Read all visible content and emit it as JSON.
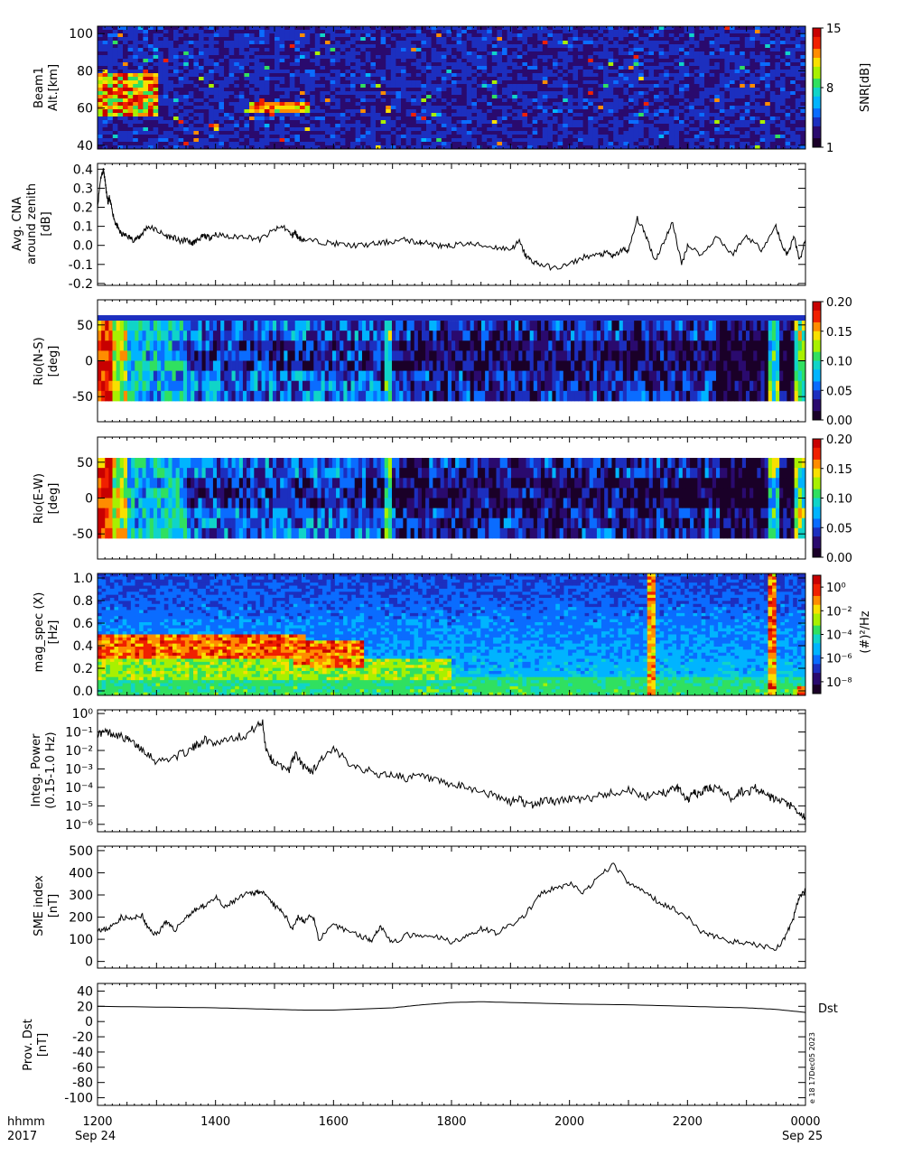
{
  "colors": {
    "rainbow": [
      "#1a0028",
      "#2a0a6e",
      "#1c2fbf",
      "#0a6cff",
      "#00b4ff",
      "#10d4c8",
      "#30e060",
      "#a8f000",
      "#f8e000",
      "#ff8c00",
      "#f02000",
      "#c80000"
    ],
    "line": "#000000"
  },
  "time_axis": {
    "ticks": [
      "1200",
      "1400",
      "1600",
      "1800",
      "2000",
      "2200",
      "0000"
    ],
    "start_date": "Sep 24",
    "end_date": "Sep 25",
    "corner_label_1": "hhmm",
    "corner_label_2": "2017"
  },
  "footnote": "e 18 17Dec05 2023",
  "chart_data": [
    {
      "type": "heatmap",
      "ylabel_1": "Beam1",
      "ylabel_2": "Alt.[km]",
      "ylim": [
        38,
        104
      ],
      "yticks": [
        "40",
        "60",
        "80",
        "100"
      ],
      "colorbar_label": "SNR[dB]",
      "colorbar_ticks": [
        "15",
        "8",
        "1"
      ]
    },
    {
      "type": "line",
      "ylabel_1": "Avg. CNA",
      "ylabel_2": "around zenith",
      "ylabel_3": "[dB]",
      "ylim": [
        -0.21,
        0.43
      ],
      "yticks": [
        "0.4",
        "0.3",
        "0.2",
        "0.1",
        "0.0",
        "-0.1",
        "-0.2"
      ],
      "x": [
        0,
        0.1,
        0.2,
        0.25,
        0.3,
        0.35,
        0.4,
        0.5,
        0.6,
        0.7,
        0.8,
        1.0,
        1.2,
        1.4,
        1.5,
        1.7,
        2.0,
        2.3,
        2.6,
        2.8,
        3.0,
        3.2,
        3.3,
        3.5,
        3.6,
        3.8,
        4.0,
        4.5,
        5.0,
        5.5,
        6.0,
        6.3,
        6.6,
        6.7,
        6.8,
        7.0,
        7.5,
        8.0,
        8.5,
        9.0,
        9.5,
        10.0,
        10.5,
        10.9,
        11.0,
        11.5,
        11.8,
        12.0,
        12.5,
        13.0,
        13.5,
        14.0,
        14.3,
        14.5,
        14.7,
        15.0,
        15.5,
        16.0,
        16.5,
        17.0,
        17.3,
        17.5,
        17.8,
        18.0,
        18.3,
        18.6,
        18.9,
        19.2,
        19.5,
        19.8,
        20.0,
        20.5,
        21.0,
        21.5,
        22.0,
        22.5,
        23.0,
        23.2,
        23.4,
        23.6,
        23.8,
        24.0
      ],
      "values": [
        0.2,
        0.35,
        0.4,
        0.35,
        0.28,
        0.22,
        0.25,
        0.18,
        0.12,
        0.09,
        0.06,
        0.05,
        0.03,
        0.04,
        0.06,
        0.1,
        0.08,
        0.05,
        0.04,
        0.02,
        0.03,
        0.01,
        0.02,
        0.04,
        0.05,
        0.04,
        0.06,
        0.04,
        0.05,
        0.03,
        0.08,
        0.1,
        0.05,
        0.07,
        0.04,
        0.03,
        0.02,
        0.01,
        0.0,
        0.0,
        0.01,
        0.02,
        0.03,
        0.01,
        0.02,
        0.0,
        -0.01,
        0.0,
        0.01,
        0.0,
        -0.01,
        -0.02,
        0.02,
        -0.05,
        -0.08,
        -0.1,
        -0.12,
        -0.1,
        -0.06,
        -0.05,
        -0.04,
        -0.06,
        -0.02,
        -0.03,
        0.14,
        0.05,
        -0.08,
        0.02,
        0.12,
        -0.1,
        0.0,
        -0.05,
        0.05,
        -0.05,
        0.05,
        -0.02,
        0.1,
        0.0,
        -0.05,
        0.05,
        -0.08,
        0.03
      ]
    },
    {
      "type": "heatmap",
      "ylabel_1": "Rio(N-S)",
      "ylabel_2": "[deg]",
      "ylim": [
        -85,
        85
      ],
      "yticks": [
        "50",
        "0",
        "-50"
      ],
      "colorbar_ticks": [
        "0.20",
        "0.15",
        "0.10",
        "0.05",
        "0.00"
      ]
    },
    {
      "type": "heatmap",
      "ylabel_1": "Rio(E-W)",
      "ylabel_2": "[deg]",
      "ylim": [
        -85,
        85
      ],
      "yticks": [
        "50",
        "0",
        "-50"
      ],
      "colorbar_ticks": [
        "0.20",
        "0.15",
        "0.10",
        "0.05",
        "0.00"
      ]
    },
    {
      "type": "heatmap",
      "ylabel_1": "mag_spec (X)",
      "ylabel_2": "[Hz]",
      "ylim": [
        -0.04,
        1.04
      ],
      "yticks": [
        "1.0",
        "0.8",
        "0.6",
        "0.4",
        "0.2",
        "0.0"
      ],
      "colorbar_label": "(#)²/Hz",
      "colorbar_ticks": [
        "10⁰",
        "10⁻²",
        "10⁻⁴",
        "10⁻⁶",
        "10⁻⁸"
      ]
    },
    {
      "type": "line",
      "log_scale": true,
      "ylabel_1": "Integ. Power",
      "ylabel_2": "(0.15-1.0 Hz)",
      "ylim": [
        -6.4,
        0.2
      ],
      "yticks": [
        "10⁰",
        "10⁻¹",
        "10⁻²",
        "10⁻³",
        "10⁻⁴",
        "10⁻⁵",
        "10⁻⁶"
      ],
      "x": [
        0,
        0.3,
        0.6,
        1.0,
        1.3,
        1.6,
        2.0,
        2.5,
        3.0,
        3.3,
        3.6,
        4.0,
        4.5,
        5.0,
        5.3,
        5.6,
        5.7,
        5.9,
        6.1,
        6.5,
        6.7,
        7.0,
        7.3,
        7.6,
        8.0,
        8.5,
        9.0,
        9.5,
        10.0,
        10.5,
        11.0,
        11.5,
        12.0,
        12.5,
        13.0,
        13.5,
        14.0,
        14.3,
        14.6,
        14.9,
        15.2,
        15.5,
        16.0,
        16.5,
        17.0,
        17.5,
        18.0,
        18.5,
        19.0,
        19.3,
        19.6,
        19.8,
        20.0,
        20.2,
        20.4,
        20.6,
        20.8,
        21.2,
        21.5,
        21.8,
        22.0,
        22.3,
        22.6,
        22.9,
        23.2,
        23.5,
        23.8,
        24.0
      ],
      "values": [
        -1.1,
        -1.0,
        -1.1,
        -1.4,
        -1.7,
        -2.0,
        -2.6,
        -2.4,
        -2.1,
        -1.8,
        -1.4,
        -1.6,
        -1.3,
        -1.2,
        -0.8,
        -0.5,
        -1.8,
        -2.5,
        -2.8,
        -3.0,
        -2.2,
        -2.9,
        -3.1,
        -2.4,
        -2.0,
        -2.6,
        -3.0,
        -3.3,
        -3.3,
        -3.5,
        -3.4,
        -3.7,
        -3.9,
        -4.0,
        -4.2,
        -4.5,
        -4.8,
        -4.6,
        -5.0,
        -4.9,
        -4.6,
        -4.8,
        -4.6,
        -4.7,
        -4.4,
        -4.3,
        -4.1,
        -4.6,
        -4.2,
        -4.3,
        -4.0,
        -4.2,
        -4.7,
        -4.3,
        -4.4,
        -4.1,
        -4.0,
        -4.2,
        -4.6,
        -4.2,
        -4.3,
        -4.0,
        -4.4,
        -4.6,
        -4.8,
        -5.0,
        -5.5,
        -5.6
      ]
    },
    {
      "type": "line",
      "ylabel_1": "SME index",
      "ylabel_2": "[nT]",
      "ylim": [
        -30,
        520
      ],
      "yticks": [
        "500",
        "400",
        "300",
        "200",
        "100",
        "0"
      ],
      "x": [
        0,
        0.2,
        0.5,
        0.8,
        1.2,
        1.5,
        1.7,
        2.0,
        2.3,
        2.6,
        3.0,
        3.3,
        3.6,
        4.0,
        4.3,
        4.6,
        5.0,
        5.3,
        5.5,
        5.8,
        6.0,
        6.3,
        6.6,
        6.8,
        7.0,
        7.3,
        7.5,
        8.0,
        8.5,
        9.0,
        9.3,
        9.6,
        10.0,
        10.5,
        11.0,
        11.5,
        12.0,
        12.5,
        13.0,
        13.5,
        14.0,
        14.5,
        15.0,
        15.5,
        16.0,
        16.5,
        17.0,
        17.5,
        18.0,
        18.5,
        19.0,
        19.5,
        20.0,
        20.5,
        21.0,
        21.5,
        22.0,
        22.5,
        23.0,
        23.3,
        23.6,
        23.8,
        24.0
      ],
      "values": [
        150,
        140,
        160,
        200,
        190,
        210,
        150,
        120,
        180,
        140,
        200,
        230,
        250,
        290,
        240,
        270,
        300,
        310,
        320,
        280,
        250,
        220,
        150,
        200,
        180,
        210,
        100,
        160,
        140,
        110,
        100,
        160,
        80,
        120,
        110,
        110,
        90,
        110,
        150,
        130,
        160,
        210,
        300,
        330,
        350,
        310,
        380,
        440,
        350,
        320,
        270,
        240,
        200,
        130,
        110,
        90,
        80,
        70,
        60,
        100,
        200,
        300,
        320
      ]
    },
    {
      "type": "line",
      "ylabel_1": "Prov. Dst",
      "ylabel_2": "[nT]",
      "legend": "Dst",
      "ylim": [
        -110,
        50
      ],
      "yticks": [
        "40",
        "20",
        "0",
        "-20",
        "-40",
        "-60",
        "-80",
        "-100"
      ],
      "x": [
        0,
        2,
        4,
        6,
        7,
        8,
        10,
        11,
        12,
        13,
        14,
        16,
        18,
        20,
        22,
        23,
        24
      ],
      "values": [
        20,
        19,
        18,
        16,
        15,
        15,
        18,
        22,
        25,
        26,
        25,
        23,
        22,
        20,
        18,
        16,
        12
      ]
    }
  ]
}
